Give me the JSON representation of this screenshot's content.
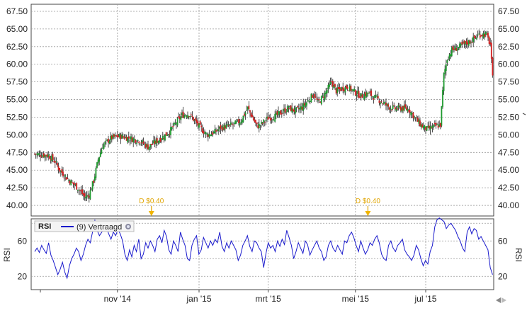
{
  "chart_data": [
    {
      "type": "candlestick",
      "title": "",
      "ylim": [
        38.5,
        68.5
      ],
      "y_ticks": [
        "67.50",
        "65.00",
        "62.50",
        "60.00",
        "57.50",
        "55.00",
        "52.50",
        "50.00",
        "47.50",
        "45.00",
        "42.50",
        "40.00"
      ],
      "x_ticks": [
        "nov '14",
        "jan '15",
        "mrt '15",
        "mei '15",
        "jul '15"
      ],
      "grid": true,
      "colors": {
        "up": "#1e9a2e",
        "down": "#d42020",
        "wick": "#222222"
      },
      "close_path": [
        [
          0,
          47.3
        ],
        [
          12,
          47.1
        ],
        [
          18,
          46.2
        ],
        [
          22,
          45.0
        ],
        [
          30,
          43.6
        ],
        [
          38,
          42.5
        ],
        [
          44,
          41.2
        ],
        [
          48,
          41.5
        ],
        [
          52,
          43.5
        ],
        [
          56,
          46.5
        ],
        [
          60,
          48.5
        ],
        [
          68,
          49.6
        ],
        [
          76,
          49.8
        ],
        [
          84,
          49.5
        ],
        [
          92,
          49.2
        ],
        [
          100,
          48.3
        ],
        [
          106,
          48.9
        ],
        [
          112,
          49.6
        ],
        [
          118,
          50.3
        ],
        [
          124,
          51.5
        ],
        [
          130,
          52.8
        ],
        [
          136,
          53.0
        ],
        [
          140,
          52.2
        ],
        [
          146,
          51.0
        ],
        [
          152,
          50.0
        ],
        [
          158,
          50.3
        ],
        [
          164,
          51.0
        ],
        [
          170,
          51.2
        ],
        [
          176,
          51.5
        ],
        [
          182,
          52.0
        ],
        [
          188,
          53.8
        ],
        [
          192,
          52.5
        ],
        [
          196,
          51.2
        ],
        [
          200,
          51.5
        ],
        [
          206,
          52.4
        ],
        [
          212,
          52.6
        ],
        [
          218,
          53.2
        ],
        [
          224,
          53.8
        ],
        [
          230,
          53.4
        ],
        [
          236,
          53.9
        ],
        [
          242,
          55.0
        ],
        [
          246,
          55.8
        ],
        [
          250,
          54.5
        ],
        [
          256,
          55.8
        ],
        [
          262,
          57.5
        ],
        [
          266,
          56.2
        ],
        [
          270,
          56.5
        ],
        [
          276,
          56.8
        ],
        [
          282,
          56.1
        ],
        [
          288,
          55.5
        ],
        [
          294,
          55.9
        ],
        [
          300,
          55.3
        ],
        [
          306,
          54.7
        ],
        [
          312,
          54.0
        ],
        [
          318,
          53.7
        ],
        [
          324,
          53.8
        ],
        [
          330,
          53.6
        ],
        [
          336,
          52.3
        ],
        [
          342,
          51.2
        ],
        [
          346,
          50.8
        ],
        [
          350,
          51.0
        ],
        [
          354,
          51.2
        ],
        [
          358,
          51.4
        ],
        [
          361,
          58.5
        ],
        [
          364,
          60.8
        ],
        [
          368,
          62.0
        ],
        [
          374,
          62.4
        ],
        [
          380,
          62.9
        ],
        [
          386,
          63.4
        ],
        [
          392,
          64.2
        ],
        [
          398,
          64.3
        ],
        [
          402,
          62.8
        ],
        [
          404,
          58.0
        ]
      ]
    },
    {
      "type": "line",
      "series": [
        {
          "name": "(9) Vertraagd",
          "color": "#1a1acc",
          "ylim": [
            5,
            85
          ],
          "values": [
            48,
            52,
            47,
            55,
            50,
            46,
            58,
            44,
            38,
            30,
            22,
            28,
            36,
            25,
            18,
            32,
            40,
            45,
            52,
            48,
            38,
            45,
            55,
            62,
            58,
            70,
            84,
            72,
            66,
            70,
            72,
            75,
            68,
            62,
            70,
            66,
            73,
            68,
            60,
            45,
            38,
            50,
            42,
            55,
            48,
            62,
            40,
            45,
            58,
            52,
            60,
            55,
            48,
            62,
            66,
            58,
            72,
            65,
            50,
            45,
            60,
            55,
            48,
            70,
            62,
            55,
            40,
            38,
            55,
            62,
            66,
            45,
            50,
            64,
            58,
            52,
            60,
            55,
            62,
            58,
            70,
            54,
            48,
            58,
            52,
            60,
            55,
            50,
            38,
            44,
            55,
            60,
            66,
            54,
            48,
            60,
            58,
            52,
            48,
            30,
            46,
            58,
            52,
            55,
            48,
            60,
            54,
            62,
            56,
            72,
            64,
            55,
            40,
            48,
            58,
            52,
            46,
            60,
            56,
            44,
            50,
            55,
            60,
            52,
            48,
            38,
            42,
            55,
            60,
            52,
            48,
            55,
            50,
            45,
            60,
            58,
            66,
            70,
            64,
            55,
            48,
            60,
            52,
            45,
            50,
            58,
            55,
            62,
            66,
            58,
            45,
            40,
            38,
            55,
            60,
            52,
            48,
            55,
            58,
            62,
            50,
            45,
            42,
            38,
            44,
            55,
            50,
            40,
            32,
            38,
            34,
            48,
            55,
            76,
            84,
            86,
            84,
            82,
            74,
            78,
            80,
            76,
            72,
            65,
            60,
            52,
            48,
            70,
            76,
            68,
            74,
            72,
            62,
            65,
            60,
            55,
            50,
            30,
            22
          ]
        }
      ],
      "y_ticks": [
        "60",
        "20"
      ],
      "ylabel": "RSI"
    }
  ],
  "rsi_panel": {
    "tag": "RSI",
    "legend": "(9) Vertraagd"
  },
  "dividends": [
    {
      "label": "D $0.40",
      "day": 103
    },
    {
      "label": "D $0.40",
      "day": 294
    }
  ]
}
